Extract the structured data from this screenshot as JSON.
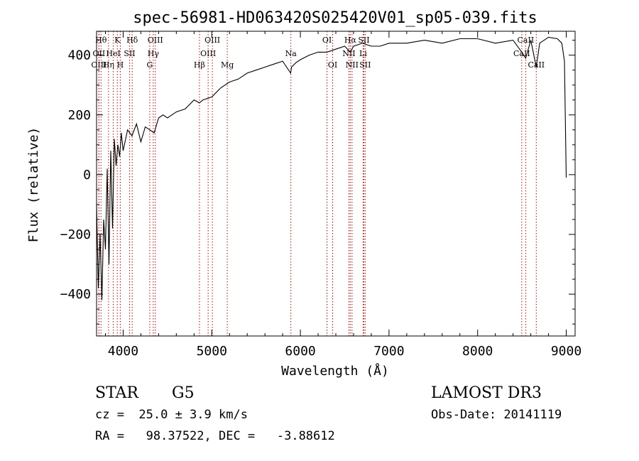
{
  "chart_data": {
    "type": "line",
    "title": "spec-56981-HD063420S025420V01_sp05-039.fits",
    "xlabel": "Wavelength (Å)",
    "ylabel": "Flux (relative)",
    "xlim": [
      3700,
      9100
    ],
    "ylim": [
      -540,
      480
    ],
    "xticks": [
      4000,
      5000,
      6000,
      7000,
      8000,
      9000
    ],
    "xtick_labels": [
      "4000",
      "5000",
      "6000",
      "7000",
      "8000",
      "9000"
    ],
    "yticks": [
      -400,
      -200,
      0,
      200,
      400
    ],
    "ytick_labels": [
      "−400",
      "−200",
      "0",
      "200",
      "400"
    ],
    "grid": false,
    "line_color": "#000000",
    "marker_color": "#cc0000",
    "series": [
      {
        "values_note": "",
        "x": [
          3700,
          3720,
          3740,
          3760,
          3780,
          3800,
          3820,
          3840,
          3860,
          3880,
          3900,
          3920,
          3940,
          3960,
          3980,
          4000,
          4050,
          4100,
          4150,
          4200,
          4250,
          4300,
          4350,
          4400,
          4450,
          4500,
          4600,
          4700,
          4800,
          4860,
          4900,
          5000,
          5100,
          5200,
          5300,
          5400,
          5500,
          5600,
          5700,
          5800,
          5890,
          5900,
          5950,
          6000,
          6100,
          6200,
          6300,
          6400,
          6500,
          6563,
          6600,
          6700,
          6800,
          6900,
          7000,
          7200,
          7400,
          7600,
          7800,
          8000,
          8200,
          8400,
          8498,
          8542,
          8600,
          8662,
          8700,
          8800,
          8900,
          8950,
          8980,
          9000
        ],
        "values": [
          -100,
          -380,
          -200,
          -420,
          -150,
          -250,
          20,
          -300,
          80,
          -180,
          120,
          30,
          100,
          60,
          140,
          80,
          150,
          130,
          170,
          110,
          160,
          150,
          140,
          190,
          200,
          190,
          210,
          220,
          250,
          240,
          250,
          260,
          290,
          310,
          320,
          340,
          350,
          360,
          370,
          380,
          340,
          360,
          375,
          385,
          400,
          410,
          410,
          420,
          430,
          410,
          430,
          440,
          430,
          430,
          440,
          440,
          450,
          440,
          455,
          455,
          440,
          450,
          410,
          390,
          450,
          360,
          440,
          460,
          455,
          440,
          380,
          -10
        ]
      }
    ],
    "line_markers": [
      {
        "x": 3750,
        "label": "Hθ",
        "row": 0
      },
      {
        "x": 3727,
        "label": "OII",
        "row": 1
      },
      {
        "x": 3727,
        "label": "OIII",
        "row": 2
      },
      {
        "x": 3835,
        "label": "Hη",
        "row": 2
      },
      {
        "x": 3889,
        "label": "HeI",
        "row": 1
      },
      {
        "x": 3934,
        "label": "K",
        "row": 0
      },
      {
        "x": 3968,
        "label": "H",
        "row": 2
      },
      {
        "x": 4072,
        "label": "SII",
        "row": 1
      },
      {
        "x": 4102,
        "label": "Hδ",
        "row": 0
      },
      {
        "x": 4300,
        "label": "G",
        "row": 2
      },
      {
        "x": 4340,
        "label": "Hγ",
        "row": 1
      },
      {
        "x": 4363,
        "label": "OIII",
        "row": 0
      },
      {
        "x": 4861,
        "label": "Hβ",
        "row": 2
      },
      {
        "x": 4959,
        "label": "OIII",
        "row": 1
      },
      {
        "x": 5007,
        "label": "OIII",
        "row": 0
      },
      {
        "x": 5175,
        "label": "Mg",
        "row": 2
      },
      {
        "x": 5893,
        "label": "Na",
        "row": 1
      },
      {
        "x": 6300,
        "label": "OI",
        "row": 0
      },
      {
        "x": 6364,
        "label": "OI",
        "row": 2
      },
      {
        "x": 6548,
        "label": "NII",
        "row": 1
      },
      {
        "x": 6563,
        "label": "Hα",
        "row": 0
      },
      {
        "x": 6583,
        "label": "NII",
        "row": 2
      },
      {
        "x": 6708,
        "label": "Li",
        "row": 1
      },
      {
        "x": 6716,
        "label": "SII",
        "row": 0
      },
      {
        "x": 6731,
        "label": "SII",
        "row": 2
      },
      {
        "x": 8498,
        "label": "CaII",
        "row": 1
      },
      {
        "x": 8542,
        "label": "CaII",
        "row": 0
      },
      {
        "x": 8662,
        "label": "CaII",
        "row": 2
      }
    ]
  },
  "info": {
    "class_label": "STAR",
    "subclass": "G5",
    "survey": "LAMOST DR3",
    "redshift": "cz =  25.0 ± 3.9 km/s",
    "obs_date": "Obs-Date: 20141119",
    "coords": "RA =   98.37522, DEC =   -3.88612"
  }
}
